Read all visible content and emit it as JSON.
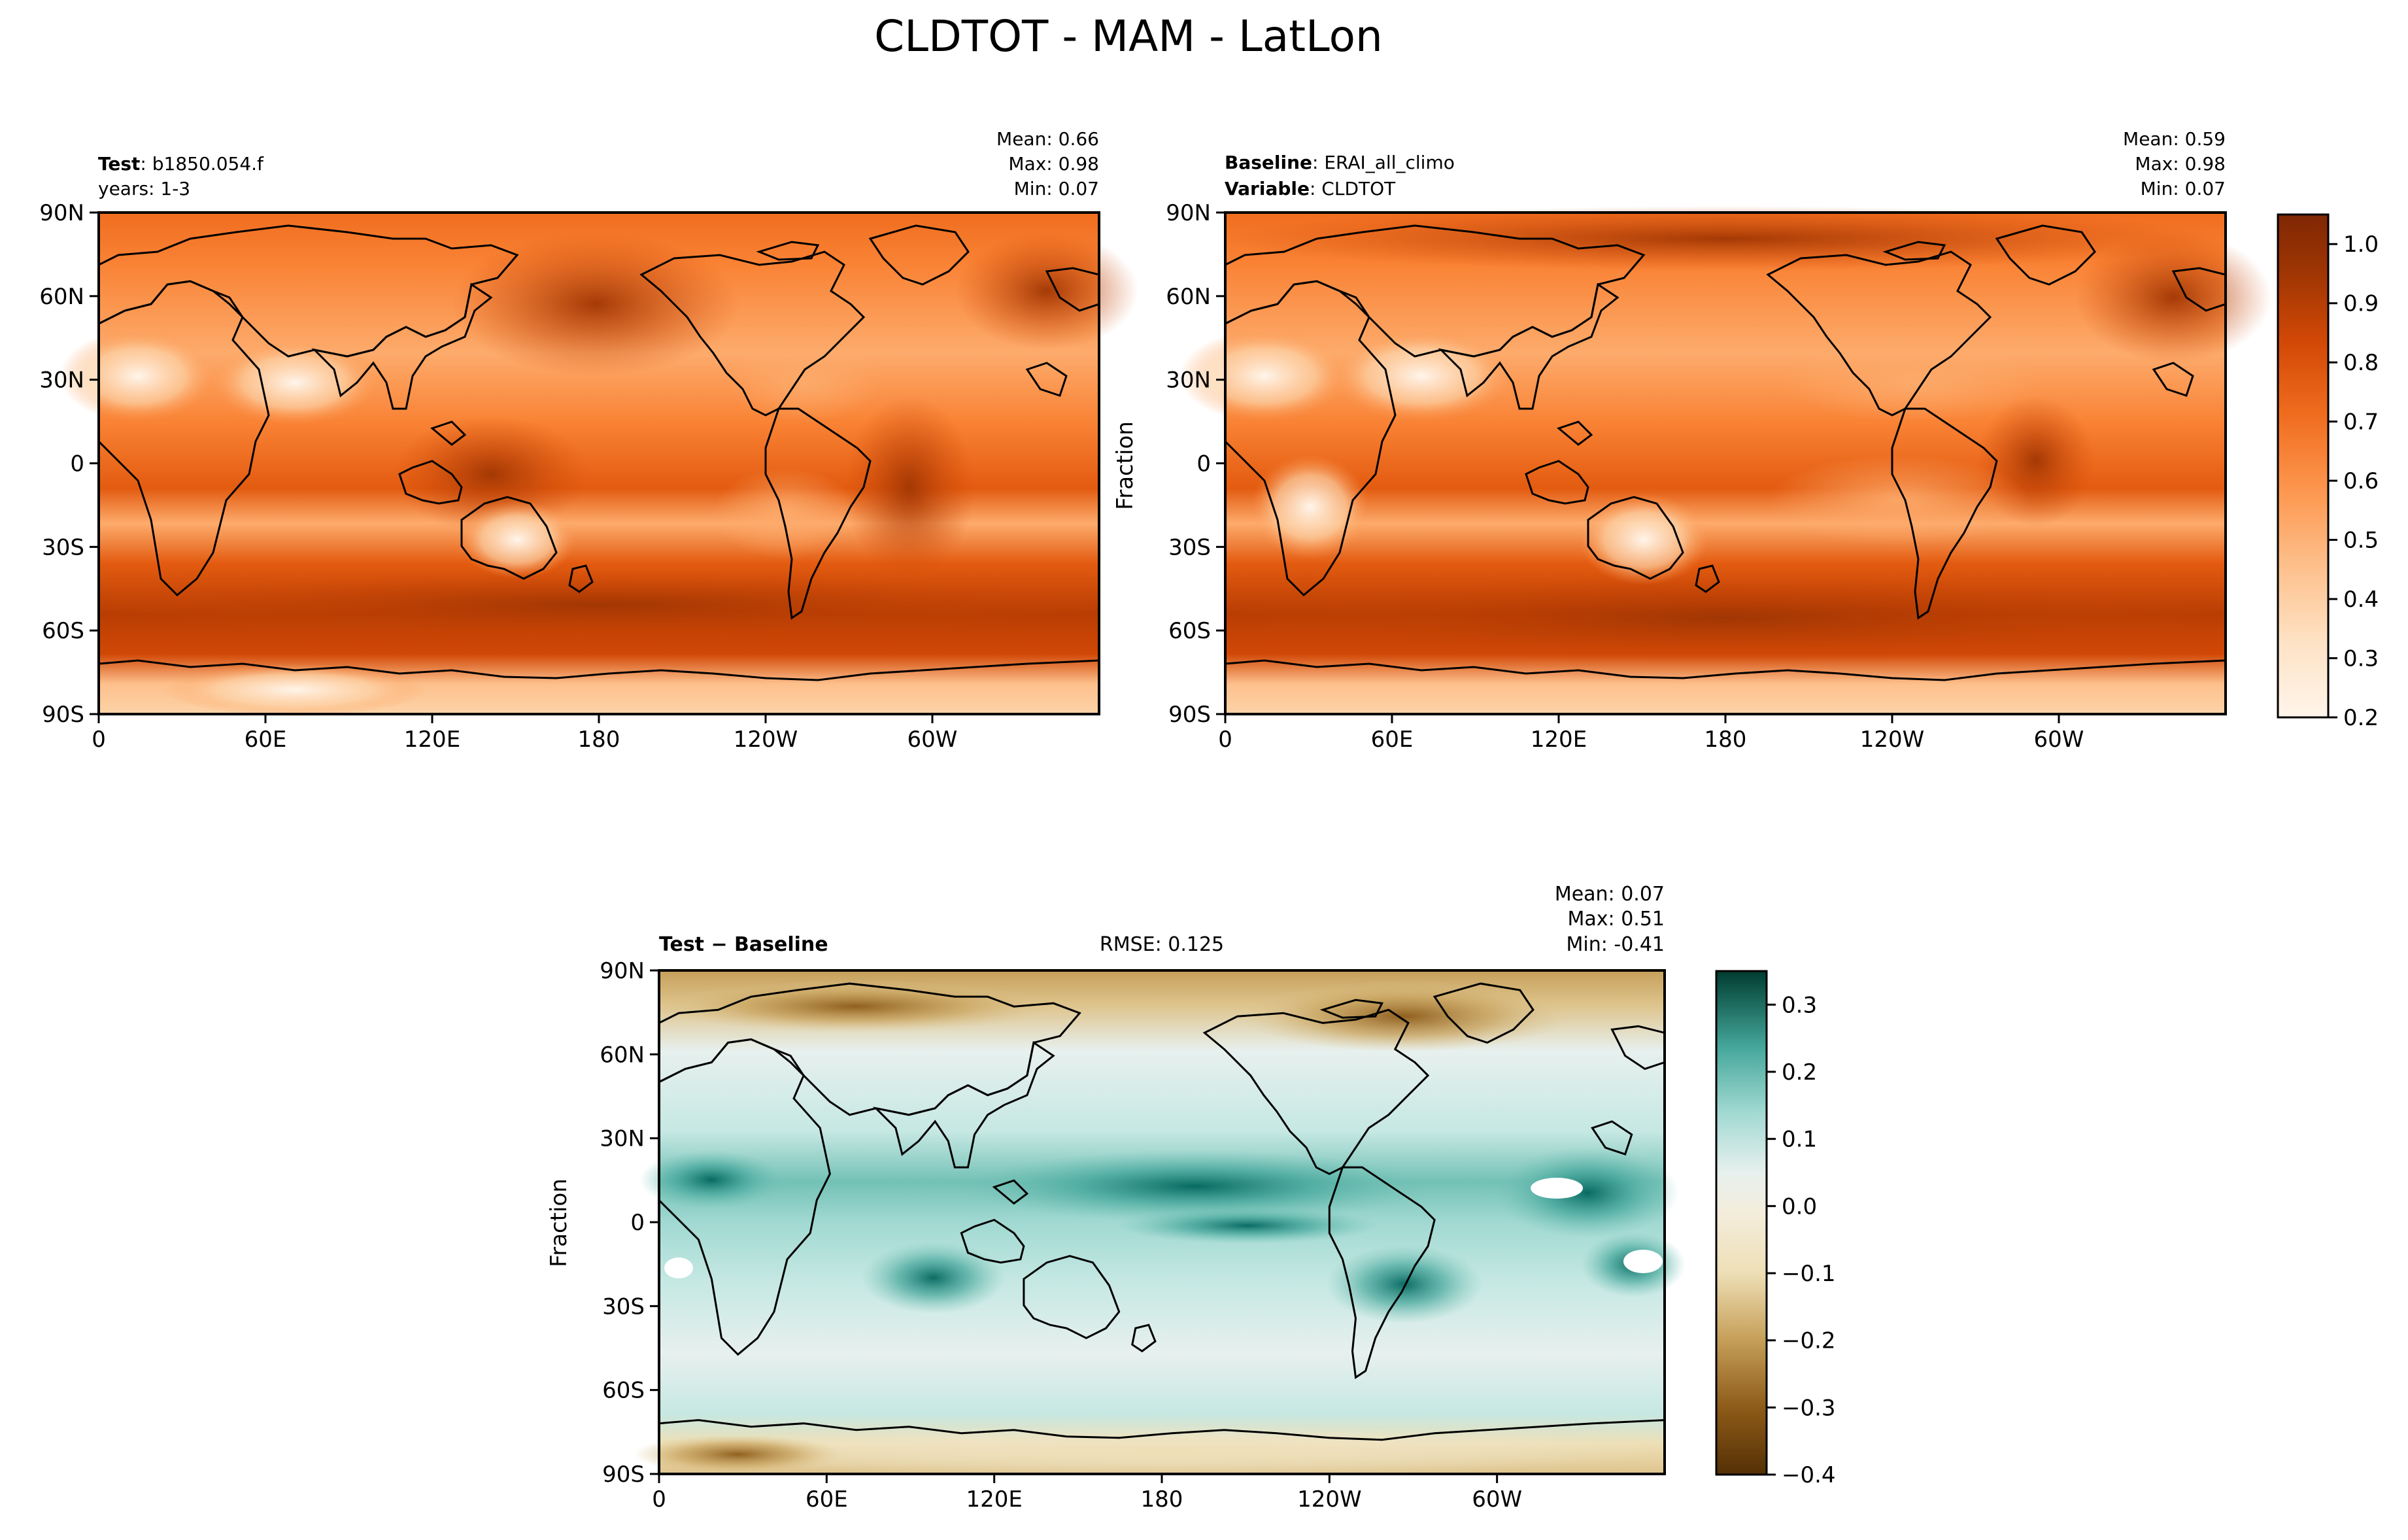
{
  "figure": {
    "title": "CLDTOT - MAM - LatLon"
  },
  "panels": [
    {
      "id": "test",
      "left_lines": [
        {
          "bold": "Test",
          "text": ": b1850.054.f"
        },
        {
          "bold": "",
          "text": "years: 1-3"
        }
      ],
      "stats": [
        "Mean:  0.66",
        "Max:  0.98",
        "Min:  0.07"
      ],
      "ylabel": ""
    },
    {
      "id": "baseline",
      "left_lines": [
        {
          "bold": "Baseline",
          "text": ": ERAI_all_climo"
        },
        {
          "bold": "Variable",
          "text": ": CLDTOT"
        }
      ],
      "stats": [
        "Mean:  0.59",
        "Max:  0.98",
        "Min:  0.07"
      ],
      "ylabel": "Fraction"
    },
    {
      "id": "diff",
      "left_lines": [
        {
          "bold": "Test − Baseline",
          "text": ""
        }
      ],
      "center_text": "RMSE: 0.125",
      "stats": [
        "Mean:  0.07",
        "Max:  0.51",
        "Min: -0.41"
      ],
      "ylabel": "Fraction"
    }
  ],
  "chart_data": [
    {
      "type": "heatmap",
      "title": "",
      "subtitle": "Test: b1850.054.f, years: 1-3",
      "xlabel": "",
      "ylabel": "",
      "projection": "PlateCarree (central longitude 180)",
      "x_ticks": [
        "0",
        "60E",
        "120E",
        "180",
        "120W",
        "60W"
      ],
      "y_ticks": [
        "90N",
        "60N",
        "30N",
        "0",
        "30S",
        "60S",
        "90S"
      ],
      "stats": {
        "mean": 0.66,
        "max": 0.98,
        "min": 0.07
      },
      "colormap": "Oranges",
      "colorbar_range": [
        0.2,
        1.05
      ]
    },
    {
      "type": "heatmap",
      "title": "",
      "subtitle": "Baseline: ERAI_all_climo, Variable: CLDTOT",
      "xlabel": "",
      "ylabel": "Fraction",
      "projection": "PlateCarree (central longitude 180)",
      "x_ticks": [
        "0",
        "60E",
        "120E",
        "180",
        "120W",
        "60W"
      ],
      "y_ticks": [
        "90N",
        "60N",
        "30N",
        "0",
        "30S",
        "60S",
        "90S"
      ],
      "stats": {
        "mean": 0.59,
        "max": 0.98,
        "min": 0.07
      },
      "colormap": "Oranges",
      "colorbar_range": [
        0.2,
        1.05
      ],
      "colorbar_ticks": [
        "0.2",
        "0.3",
        "0.4",
        "0.5",
        "0.6",
        "0.7",
        "0.8",
        "0.9",
        "1.0"
      ]
    },
    {
      "type": "heatmap",
      "title": "",
      "subtitle": "Test − Baseline",
      "xlabel": "",
      "ylabel": "Fraction",
      "projection": "PlateCarree (central longitude 180)",
      "x_ticks": [
        "0",
        "60E",
        "120E",
        "180",
        "120W",
        "60W"
      ],
      "y_ticks": [
        "90N",
        "60N",
        "30N",
        "0",
        "30S",
        "60S",
        "90S"
      ],
      "stats": {
        "mean": 0.07,
        "max": 0.51,
        "min": -0.41,
        "rmse": 0.125
      },
      "colormap": "BrBG",
      "colorbar_range": [
        -0.4,
        0.35
      ],
      "colorbar_ticks": [
        "0.3",
        "0.2",
        "0.1",
        "0.0",
        "−0.1",
        "−0.2",
        "−0.3",
        "−0.4"
      ]
    }
  ],
  "colormaps": {
    "oranges": [
      "#fff5eb",
      "#feecd9",
      "#fee2c5",
      "#fdd3a8",
      "#fdc08c",
      "#fdab6c",
      "#fd974f",
      "#f98234",
      "#f06d1f",
      "#e35b10",
      "#d14806",
      "#b93d03",
      "#a03603",
      "#7f2704"
    ],
    "brbg": [
      "#543005",
      "#74470f",
      "#8c5a18",
      "#ad7c2f",
      "#c6a05a",
      "#dec48d",
      "#eedfb6",
      "#f4eddc",
      "#e7f0ee",
      "#c6e8e3",
      "#a1d9d2",
      "#73c1b6",
      "#44a69a",
      "#1b8277",
      "#01665e",
      "#003c30"
    ]
  }
}
